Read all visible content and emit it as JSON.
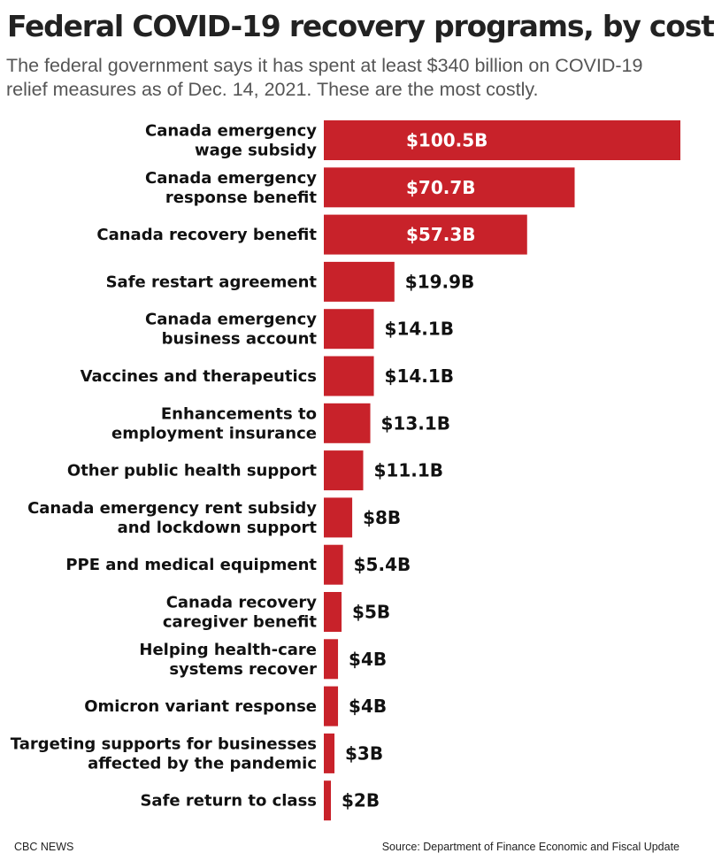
{
  "header": {
    "title": "Federal COVID-19 recovery programs, by cost",
    "subtitle": "The federal government says it has spent at least $340 billion on COVID-19 relief measures as of Dec. 14, 2021. These are the most costly."
  },
  "footer": {
    "credit": "CBC NEWS",
    "source": "Source: Department of Finance Economic and Fiscal Update"
  },
  "colors": {
    "bar": "#c8222a",
    "label_inside": "#ffffff",
    "label_outside": "#111111"
  },
  "chart_data": {
    "type": "bar",
    "orientation": "horizontal",
    "unit": "billions of dollars",
    "categories": [
      [
        "Canada emergency",
        "wage subsidy"
      ],
      [
        "Canada emergency",
        "response benefit"
      ],
      [
        "Canada recovery benefit"
      ],
      [
        "Safe restart agreement"
      ],
      [
        "Canada emergency",
        "business account"
      ],
      [
        "Vaccines and therapeutics"
      ],
      [
        "Enhancements to",
        "employment insurance"
      ],
      [
        "Other public health support"
      ],
      [
        "Canada emergency rent subsidy",
        "and lockdown support"
      ],
      [
        "PPE and medical equipment"
      ],
      [
        "Canada recovery",
        "caregiver benefit"
      ],
      [
        "Helping health-care",
        "systems recover"
      ],
      [
        "Omicron variant response"
      ],
      [
        "Targeting supports for businesses",
        "affected by the pandemic"
      ],
      [
        "Safe return to class"
      ]
    ],
    "values": [
      100.5,
      70.7,
      57.3,
      19.9,
      14.1,
      14.1,
      13.1,
      11.1,
      8,
      5.4,
      5,
      4,
      4,
      3,
      2
    ],
    "data_labels": [
      "$100.5B",
      "$70.7B",
      "$57.3B",
      "$19.9B",
      "$14.1B",
      "$14.1B",
      "$13.1B",
      "$11.1B",
      "$8B",
      "$5.4B",
      "$5B",
      "$4B",
      "$4B",
      "$3B",
      "$2B"
    ],
    "xlim": [
      0,
      100.5
    ],
    "grid": false,
    "legend": "none"
  }
}
